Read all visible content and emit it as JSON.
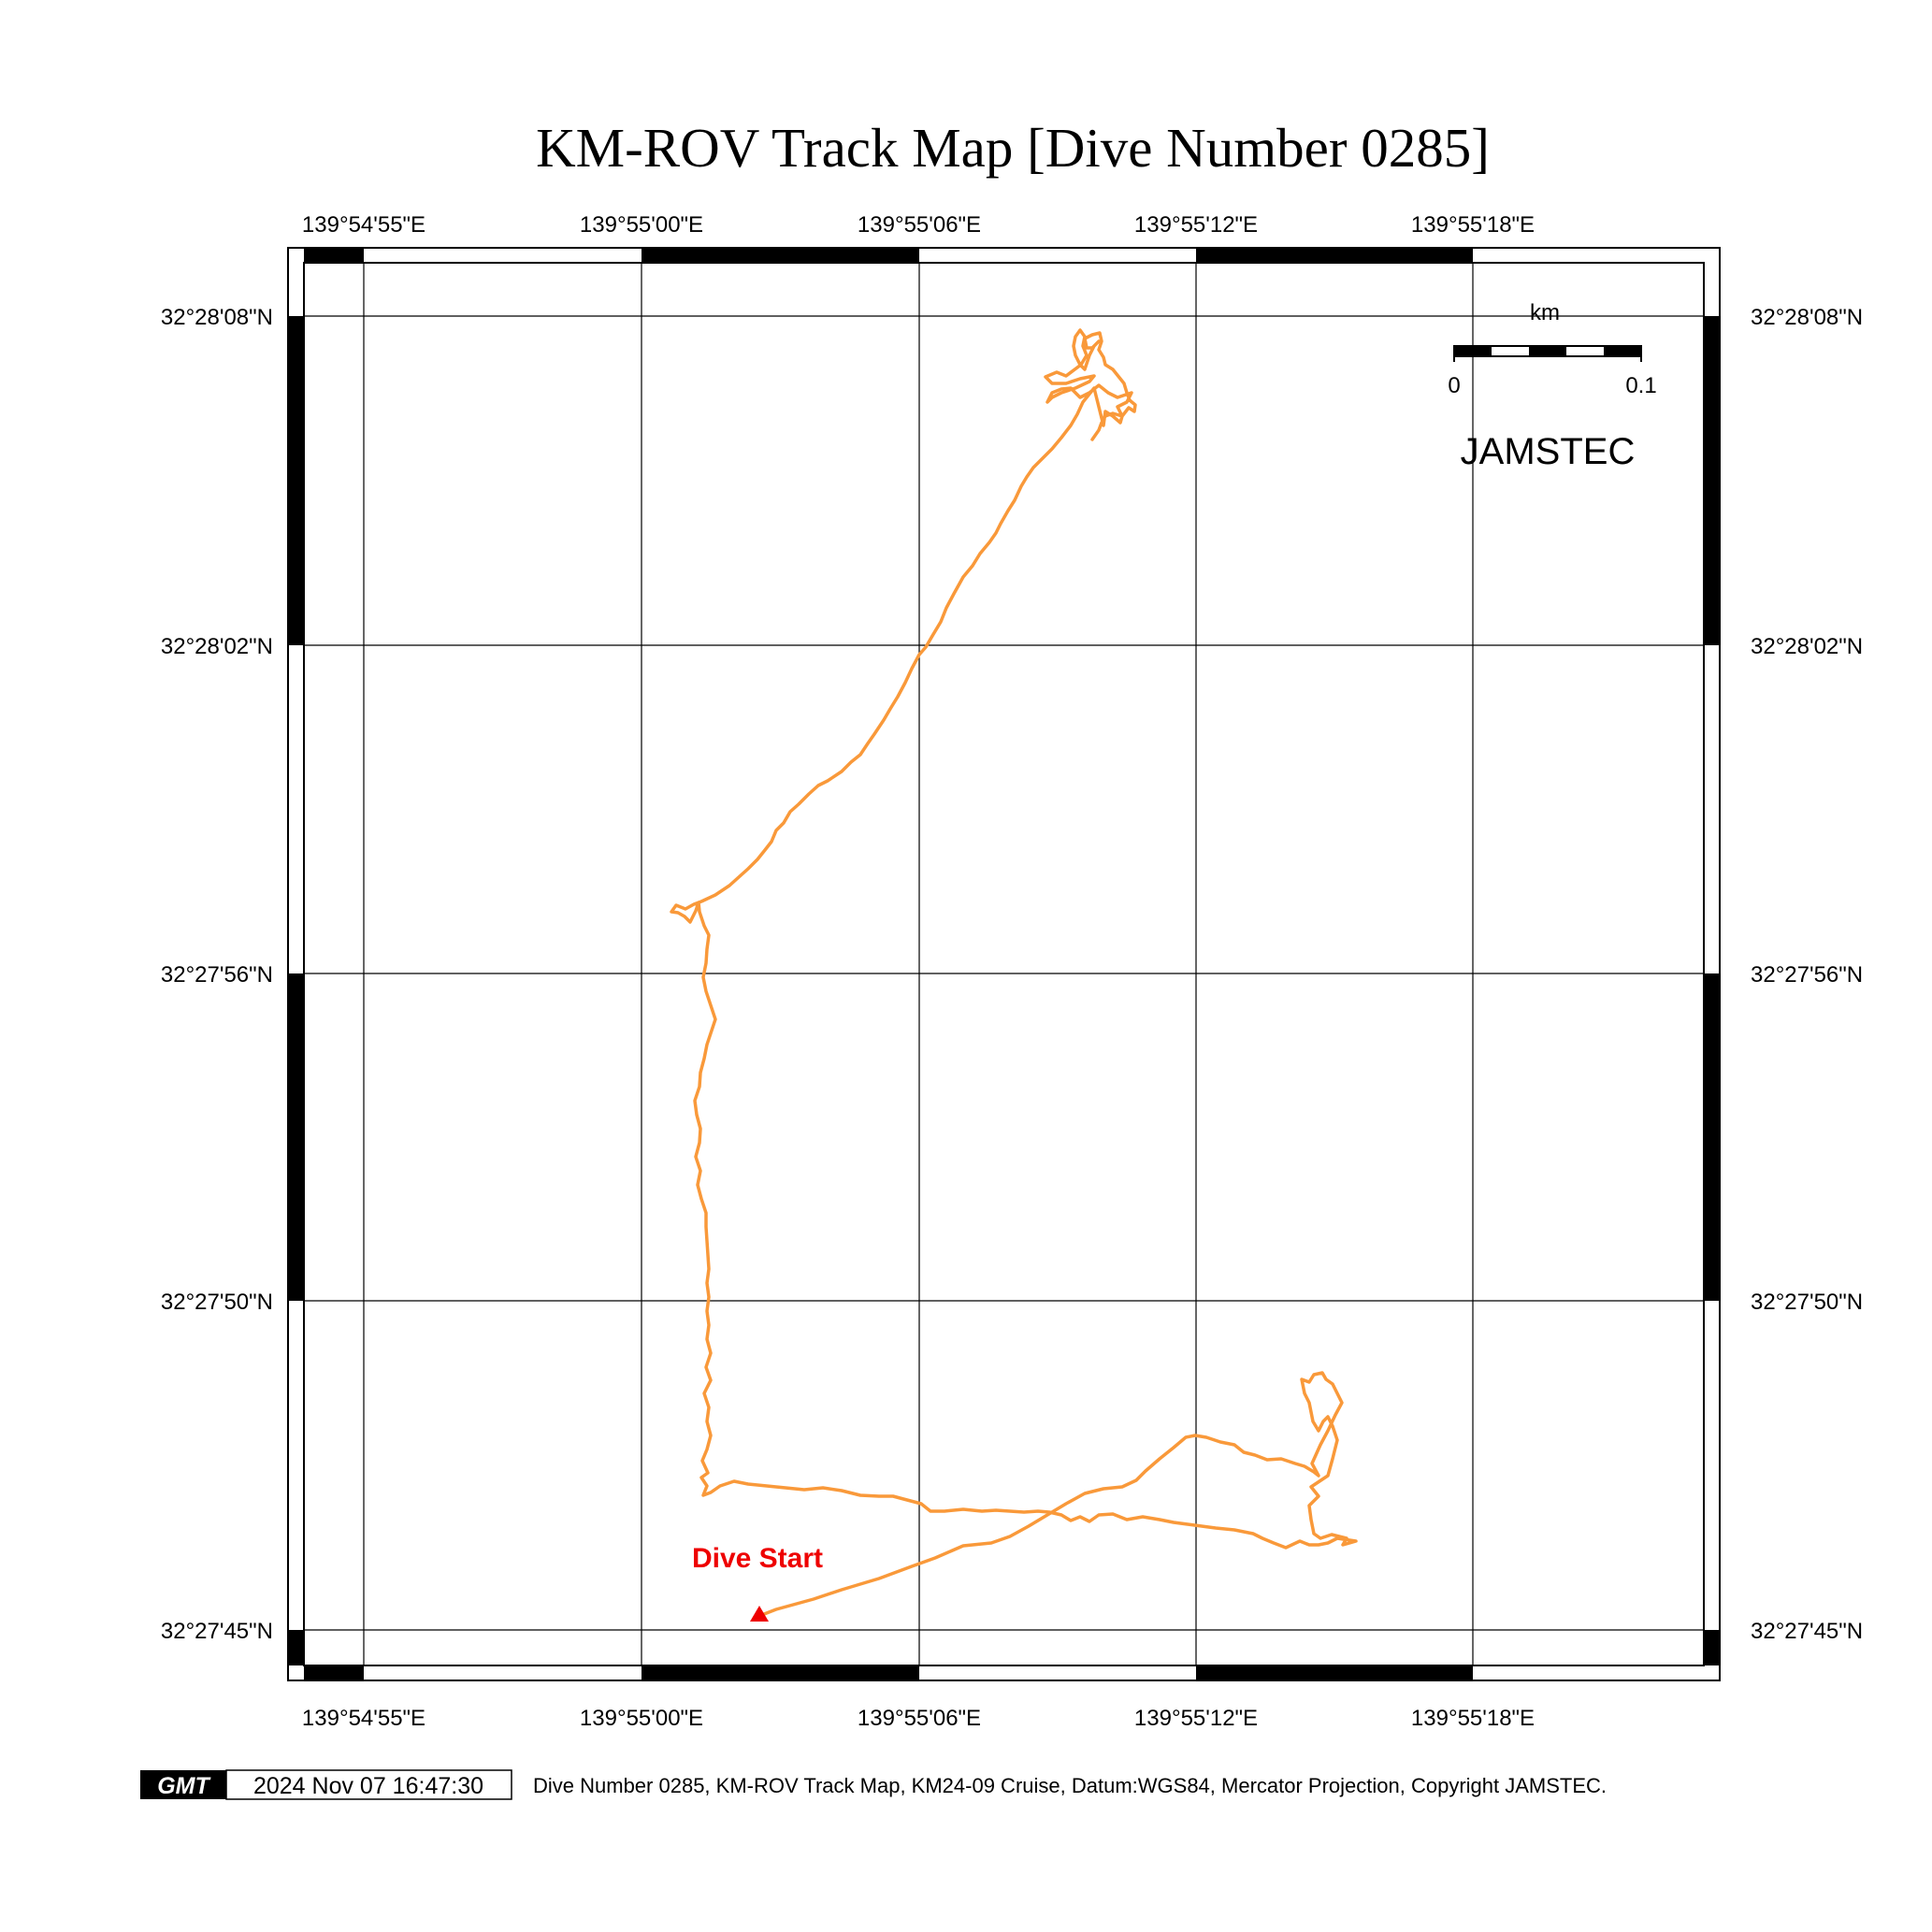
{
  "title": "KM-ROV Track Map [Dive Number 0285]",
  "longitude_ticks": [
    "139°54'55\"E",
    "139°55'00\"E",
    "139°55'06\"E",
    "139°55'12\"E",
    "139°55'18\"E"
  ],
  "latitude_ticks": [
    "32°28'08\"N",
    "32°28'02\"N",
    "32°27'56\"N",
    "32°27'50\"N",
    "32°27'45\"N"
  ],
  "scale_bar": {
    "unit": "km",
    "start": "0",
    "end": "0.1"
  },
  "organization": "JAMSTEC",
  "start_marker": {
    "label": "Dive Start",
    "color": "#ee0000"
  },
  "track_color": "#f9993a",
  "footer": {
    "logo": "GMT",
    "timestamp": "2024 Nov 07 16:47:30",
    "caption": "Dive Number 0285, KM-ROV Track Map, KM24-09 Cruise, Datum:WGS84, Mercator Projection, Copyright JAMSTEC."
  }
}
